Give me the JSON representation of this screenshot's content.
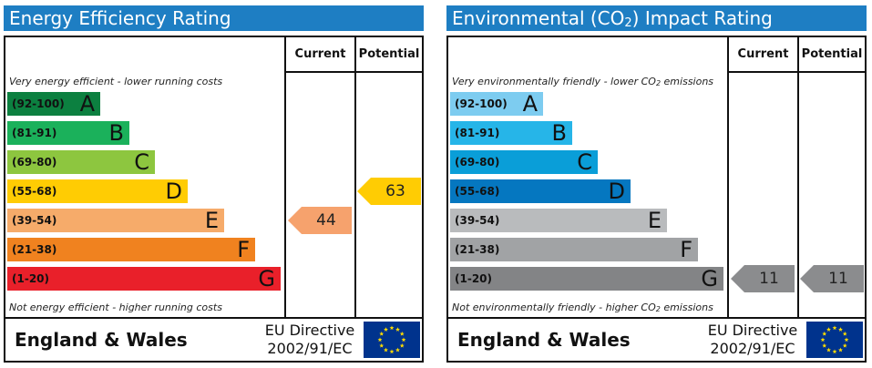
{
  "panels": [
    {
      "title": "Energy Efficiency Rating",
      "title_prefix": "Environmental (CO",
      "headers": {
        "current": "Current",
        "potential": "Potential"
      },
      "top_note": "Very energy efficient - lower running costs",
      "bottom_note": "Not energy efficient - higher running costs",
      "bands": [
        {
          "range": "(92-100)",
          "letter": "A",
          "color": "#0c8040"
        },
        {
          "range": "(81-91)",
          "letter": "B",
          "color": "#1bb15b"
        },
        {
          "range": "(69-80)",
          "letter": "C",
          "color": "#8dc63f"
        },
        {
          "range": "(55-68)",
          "letter": "D",
          "color": "#ffcc03"
        },
        {
          "range": "(39-54)",
          "letter": "E",
          "color": "#f6ab6a"
        },
        {
          "range": "(21-38)",
          "letter": "F",
          "color": "#f0821f"
        },
        {
          "range": "(1-20)",
          "letter": "G",
          "color": "#e9202a"
        }
      ],
      "current": {
        "value": "44",
        "band": "E",
        "color": "#f6a26d"
      },
      "potential": {
        "value": "63",
        "band": "D",
        "color": "#ffcc03"
      },
      "footer": {
        "country": "England & Wales",
        "directive_line1": "EU Directive",
        "directive_line2": "2002/91/EC"
      }
    },
    {
      "title_prefix": "Environmental (CO",
      "title_sub": "2",
      "title_suffix": ") Impact Rating",
      "headers": {
        "current": "Current",
        "potential": "Potential"
      },
      "top_note_prefix": "Very environmentally friendly - lower CO",
      "top_note_sub": "2",
      "top_note_suffix": " emissions",
      "bottom_note_prefix": "Not environmentally friendly - higher CO",
      "bottom_note_sub": "2",
      "bottom_note_suffix": " emissions",
      "bands": [
        {
          "range": "(92-100)",
          "letter": "A",
          "color": "#7dccf0"
        },
        {
          "range": "(81-91)",
          "letter": "B",
          "color": "#26b5e8"
        },
        {
          "range": "(69-80)",
          "letter": "C",
          "color": "#0a9ed8"
        },
        {
          "range": "(55-68)",
          "letter": "D",
          "color": "#0577c0"
        },
        {
          "range": "(39-54)",
          "letter": "E",
          "color": "#b9bbbd"
        },
        {
          "range": "(21-38)",
          "letter": "F",
          "color": "#a1a3a5"
        },
        {
          "range": "(1-20)",
          "letter": "G",
          "color": "#838486"
        }
      ],
      "current": {
        "value": "11",
        "band": "G",
        "color": "#8b8c8e"
      },
      "potential": {
        "value": "11",
        "band": "G",
        "color": "#8b8c8e"
      },
      "footer": {
        "country": "England & Wales",
        "directive_line1": "EU Directive",
        "directive_line2": "2002/91/EC"
      }
    }
  ],
  "chart_data": [
    {
      "type": "bar",
      "title": "Energy Efficiency Rating",
      "categories": [
        "(92-100) A",
        "(81-91) B",
        "(69-80) C",
        "(55-68) D",
        "(39-54) E",
        "(21-38) F",
        "(1-20) G"
      ],
      "current": 44,
      "potential": 63
    },
    {
      "type": "bar",
      "title": "Environmental (CO2) Impact Rating",
      "categories": [
        "(92-100) A",
        "(81-91) B",
        "(69-80) C",
        "(55-68) D",
        "(39-54) E",
        "(21-38) F",
        "(1-20) G"
      ],
      "current": 11,
      "potential": 11
    }
  ],
  "flag": {
    "color": "#00338d",
    "star_color": "#ffdd00",
    "icon": "eu-flag-icon"
  }
}
